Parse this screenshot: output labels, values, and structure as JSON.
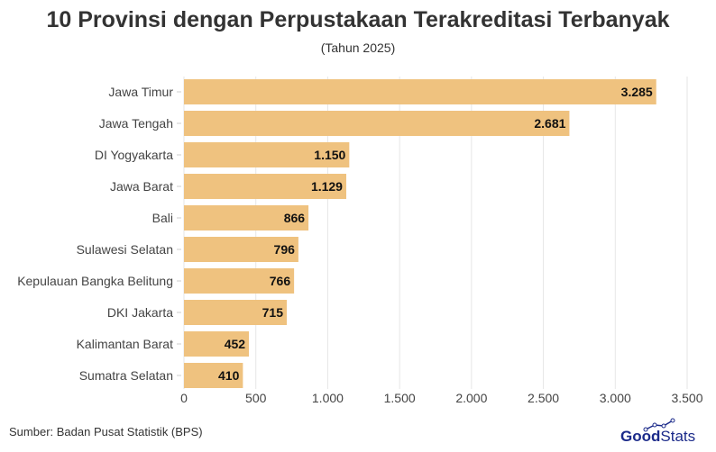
{
  "chart_data": {
    "type": "bar",
    "orientation": "horizontal",
    "title": "10 Provinsi dengan Perpustakaan Terakreditasi Terbanyak",
    "subtitle": "(Tahun 2025)",
    "categories": [
      "Jawa Timur",
      "Jawa Tengah",
      "DI Yogyakarta",
      "Jawa Barat",
      "Bali",
      "Sulawesi Selatan",
      "Kepulauan Bangka Belitung",
      "DKI Jakarta",
      "Kalimantan Barat",
      "Sumatra Selatan"
    ],
    "values": [
      3285,
      2681,
      1150,
      1129,
      866,
      796,
      766,
      715,
      452,
      410
    ],
    "data_labels": [
      "3.285",
      "2.681",
      "1.150",
      "1.129",
      "866",
      "796",
      "766",
      "715",
      "452",
      "410"
    ],
    "xlim": [
      0,
      3500
    ],
    "x_ticks": [
      0,
      500,
      1000,
      1500,
      2000,
      2500,
      3000,
      3500
    ],
    "x_tick_labels": [
      "0",
      "500",
      "1.000",
      "1.500",
      "2.000",
      "2.500",
      "3.000",
      "3.500"
    ],
    "grid": true,
    "bar_color": "#EFC27F"
  },
  "source": "Sumber: Badan Pusat Statistik (BPS)",
  "logo": {
    "text_bold": "Good",
    "text_light": "Stats",
    "color": "#1b2a8a"
  }
}
